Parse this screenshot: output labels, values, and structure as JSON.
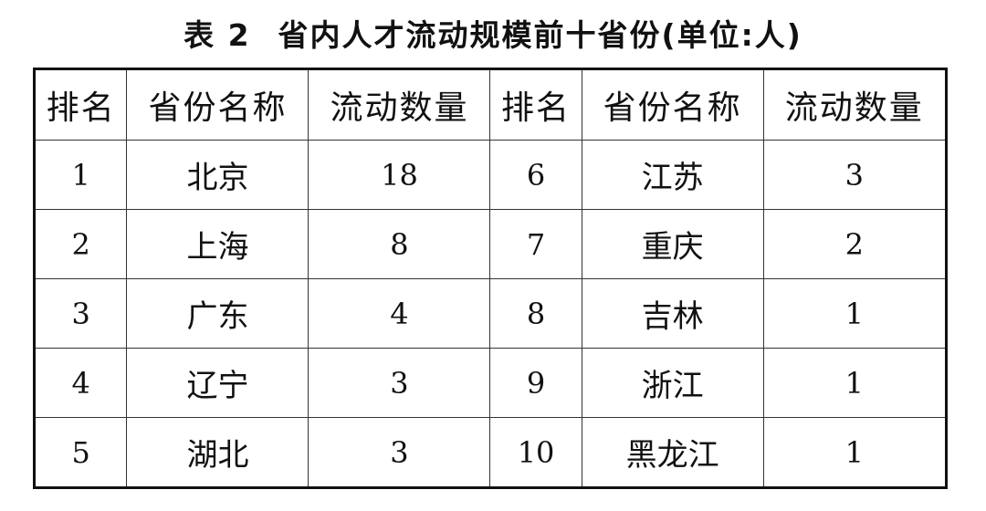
{
  "title": {
    "label": "表 2",
    "text": "省内人才流动规模前十省份(单位:人)"
  },
  "table": {
    "headers": [
      "排名",
      "省份名称",
      "流动数量",
      "排名",
      "省份名称",
      "流动数量"
    ],
    "rows": [
      [
        "1",
        "北京",
        "18",
        "6",
        "江苏",
        "3"
      ],
      [
        "2",
        "上海",
        "8",
        "7",
        "重庆",
        "2"
      ],
      [
        "3",
        "广东",
        "4",
        "8",
        "吉林",
        "1"
      ],
      [
        "4",
        "辽宁",
        "3",
        "9",
        "浙江",
        "1"
      ],
      [
        "5",
        "湖北",
        "3",
        "10",
        "黑龙江",
        "1"
      ]
    ]
  }
}
